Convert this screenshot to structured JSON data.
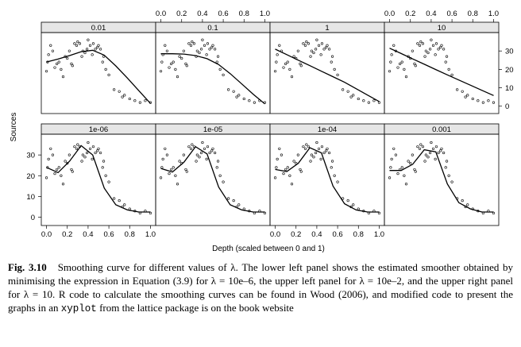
{
  "chart_data": {
    "type": "scatter",
    "layout": "lattice-trellis",
    "xlabel": "Depth (scaled between 0 and 1)",
    "ylabel": "Sources",
    "xlim": [
      -0.05,
      1.05
    ],
    "ylim": [
      -4,
      40
    ],
    "xticks": [
      "0.0",
      "0.2",
      "0.4",
      "0.6",
      "0.8",
      "1.0"
    ],
    "yticks": [
      "0",
      "10",
      "20",
      "30"
    ],
    "x": [
      0.0,
      0.01,
      0.02,
      0.04,
      0.06,
      0.08,
      0.1,
      0.12,
      0.14,
      0.16,
      0.18,
      0.2,
      0.22,
      0.24,
      0.25,
      0.27,
      0.29,
      0.3,
      0.32,
      0.34,
      0.35,
      0.37,
      0.39,
      0.4,
      0.42,
      0.44,
      0.45,
      0.47,
      0.49,
      0.5,
      0.52,
      0.54,
      0.55,
      0.57,
      0.6,
      0.65,
      0.7,
      0.73,
      0.75,
      0.8,
      0.85,
      0.9,
      0.95,
      1.0
    ],
    "y": [
      19,
      24,
      28,
      33,
      30,
      21,
      23,
      24,
      20,
      16,
      27,
      26,
      30,
      23,
      22,
      34,
      33,
      35,
      34,
      27,
      30,
      29,
      31,
      36,
      33,
      28,
      34,
      31,
      32,
      33,
      31,
      24,
      27,
      20,
      17,
      9,
      8,
      5,
      6,
      4,
      3,
      2,
      3,
      2
    ],
    "panels": [
      {
        "label": "0.01",
        "fit": [
          24.0,
          25.6,
          27.5,
          29.6,
          30.4,
          27.7,
          21.9,
          15.3,
          8.4,
          1.5
        ]
      },
      {
        "label": "0.1",
        "fit": [
          28.5,
          28.5,
          28.3,
          27.5,
          25.8,
          22.6,
          17.7,
          12.1,
          6.5,
          1.2
        ]
      },
      {
        "label": "1",
        "fit": [
          31.0,
          28.0,
          25.0,
          22.0,
          19.0,
          16.0,
          13.0,
          9.5,
          6.0,
          2.5
        ]
      },
      {
        "label": "10",
        "fit": [
          31.5,
          28.6,
          25.7,
          22.8,
          19.9,
          17.0,
          14.2,
          11.4,
          8.6,
          5.8
        ]
      },
      {
        "label": "1e-06",
        "fit": [
          24.0,
          21.5,
          27.0,
          34.5,
          30.0,
          14.0,
          6.0,
          3.5,
          2.5,
          2.5
        ]
      },
      {
        "label": "1e-05",
        "fit": [
          23.5,
          21.8,
          26.5,
          34.0,
          30.5,
          14.5,
          6.0,
          3.5,
          2.5,
          2.5
        ]
      },
      {
        "label": "1e-04",
        "fit": [
          23.0,
          22.0,
          26.0,
          33.5,
          31.0,
          15.0,
          6.5,
          3.5,
          2.5,
          2.5
        ]
      },
      {
        "label": "0.001",
        "fit": [
          22.5,
          22.5,
          25.5,
          32.5,
          31.5,
          16.0,
          7.0,
          4.0,
          2.5,
          2.5
        ]
      }
    ]
  },
  "caption": {
    "label": "Fig. 3.10",
    "text": "Smoothing curve for different values of λ. The lower left panel shows the estimated smoother obtained by minimising the expression in Equation (3.9) for λ = 10e–6, the upper left panel for λ = 10e–2, and the upper right panel for λ = 10. R code to calculate the smoothing curves can be found in Wood (2006), and modified code to present the graphs in an",
    "code": "xyplot",
    "tail": "from the lattice package is on the book website"
  }
}
